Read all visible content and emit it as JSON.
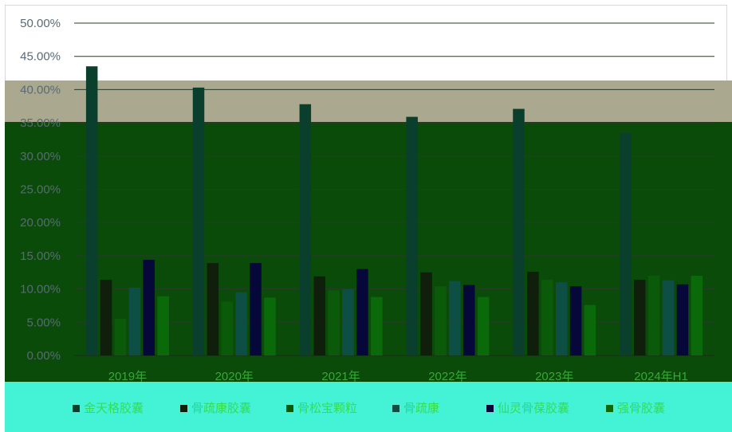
{
  "chart_data": {
    "type": "bar",
    "categories": [
      "2019年",
      "2020年",
      "2021年",
      "2022年",
      "2023年",
      "2024年H1"
    ],
    "series": [
      {
        "name": "金天格胶囊",
        "color": "#0b3f2d",
        "values": [
          43.5,
          40.3,
          37.8,
          35.9,
          37.1,
          33.5
        ]
      },
      {
        "name": "骨疏康胶囊",
        "color": "#0f1f0c",
        "values": [
          11.4,
          13.9,
          11.9,
          12.5,
          12.6,
          11.4
        ]
      },
      {
        "name": "骨松宝颗粒",
        "color": "#0a5a0a",
        "values": [
          5.5,
          8.1,
          9.8,
          10.4,
          11.4,
          12.0
        ]
      },
      {
        "name": "骨疏康",
        "color": "#0d4f45",
        "values": [
          10.2,
          9.5,
          10.0,
          11.2,
          11.0,
          11.3
        ]
      },
      {
        "name": "仙灵骨葆胶囊",
        "color": "#07083a",
        "values": [
          14.4,
          13.9,
          13.0,
          10.6,
          10.4,
          10.7
        ]
      },
      {
        "name": "强骨胶囊",
        "color": "#0a6a0a",
        "values": [
          8.9,
          8.7,
          8.8,
          8.8,
          7.6,
          12.0
        ]
      }
    ],
    "ylim": [
      0,
      50
    ],
    "yticks": [
      "0.00%",
      "5.00%",
      "10.00%",
      "15.00%",
      "20.00%",
      "25.00%",
      "30.00%",
      "35.00%",
      "40.00%",
      "45.00%",
      "50.00%"
    ],
    "xlabel": "",
    "ylabel": "",
    "grid": true,
    "legend_position": "bottom"
  },
  "colors": {
    "band_khaki": "#aaa88e",
    "band_green": "#0a4b0a",
    "band_cyan": "#44f2d6"
  }
}
